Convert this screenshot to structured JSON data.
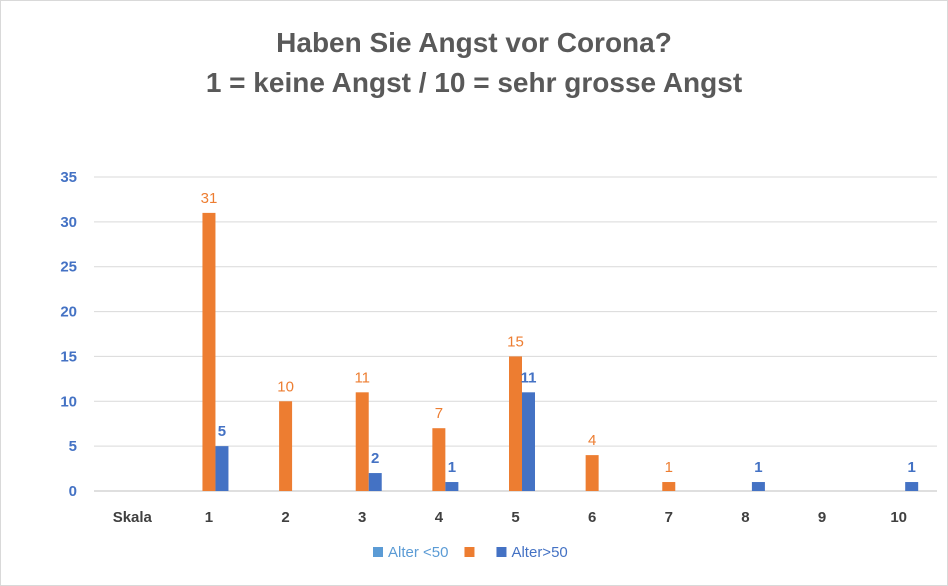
{
  "chart_data": {
    "type": "bar",
    "title_line1": "Haben Sie Angst vor Corona?",
    "title_line2": "1 = keine Angst / 10 = sehr grosse Angst",
    "categories": [
      "Skala",
      "1",
      "2",
      "3",
      "4",
      "5",
      "6",
      "7",
      "8",
      "9",
      "10"
    ],
    "series": [
      {
        "name": "Alter <50",
        "color": "#5b9bd5",
        "values": [
          null,
          null,
          null,
          null,
          null,
          null,
          null,
          null,
          null,
          null,
          null
        ]
      },
      {
        "name": "",
        "color": "#ed7d31",
        "values": [
          null,
          31,
          10,
          11,
          7,
          15,
          4,
          1,
          null,
          null,
          null
        ]
      },
      {
        "name": "Alter>50",
        "color": "#4472c4",
        "values": [
          null,
          5,
          null,
          2,
          1,
          11,
          null,
          null,
          1,
          null,
          1
        ]
      }
    ],
    "ylim": [
      0,
      35
    ],
    "yticks": [
      0,
      5,
      10,
      15,
      20,
      25,
      30,
      35
    ],
    "grid": true,
    "legend_position": "bottom"
  }
}
